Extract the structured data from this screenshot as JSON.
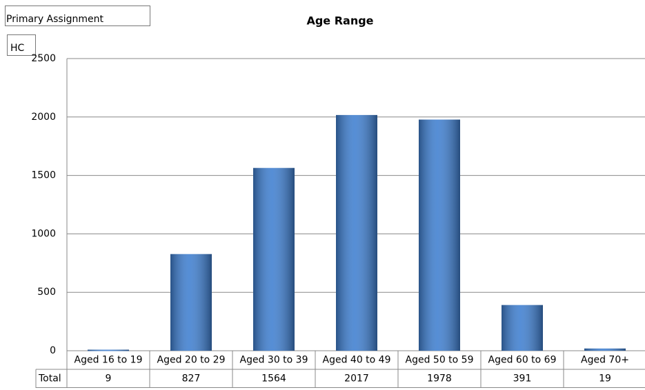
{
  "chart_data": {
    "type": "bar",
    "title": "Age Range",
    "filter_label": "Primary Assignment",
    "values_label": "HC",
    "categories": [
      "Aged 16 to 19",
      "Aged 20 to 29",
      "Aged 30 to 39",
      "Aged 40 to 49",
      "Aged 50 to 59",
      "Aged 60 to 69",
      "Aged 70+"
    ],
    "series": [
      {
        "name": "Total",
        "color": "#3f7fd0",
        "values": [
          9,
          827,
          1564,
          2017,
          1978,
          391,
          19
        ]
      }
    ],
    "ylim": [
      0,
      2500
    ],
    "yticks": [
      0,
      500,
      1000,
      1500,
      2000,
      2500
    ],
    "grid": true
  }
}
